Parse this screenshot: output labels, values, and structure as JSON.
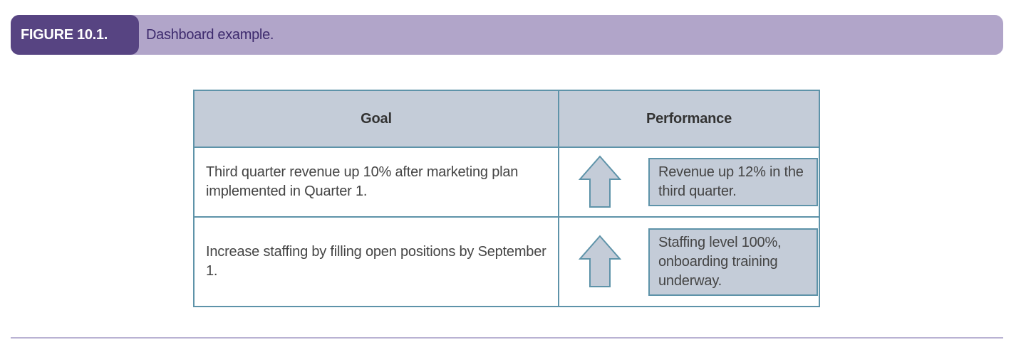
{
  "figure": {
    "label": "FIGURE 10.1.",
    "title": "Dashboard example."
  },
  "table": {
    "headers": [
      "Goal",
      "Performance"
    ],
    "rows": [
      {
        "goal": "Third quarter revenue up 10% after marketing plan implemented in Quarter 1.",
        "trend_icon": "up-arrow-icon",
        "performance": "Revenue up 12% in the third quarter."
      },
      {
        "goal": "Increase staffing by filling open positions by September 1.",
        "trend_icon": "up-arrow-icon",
        "performance": "Staffing level 100%, onboarding training underway."
      }
    ]
  },
  "colors": {
    "caption_bar": "#b1a5c9",
    "caption_label_bg": "#574482",
    "header_fill": "#c4ccd8",
    "border": "#5e93a9",
    "arrow_fill": "#c4ccd8"
  }
}
